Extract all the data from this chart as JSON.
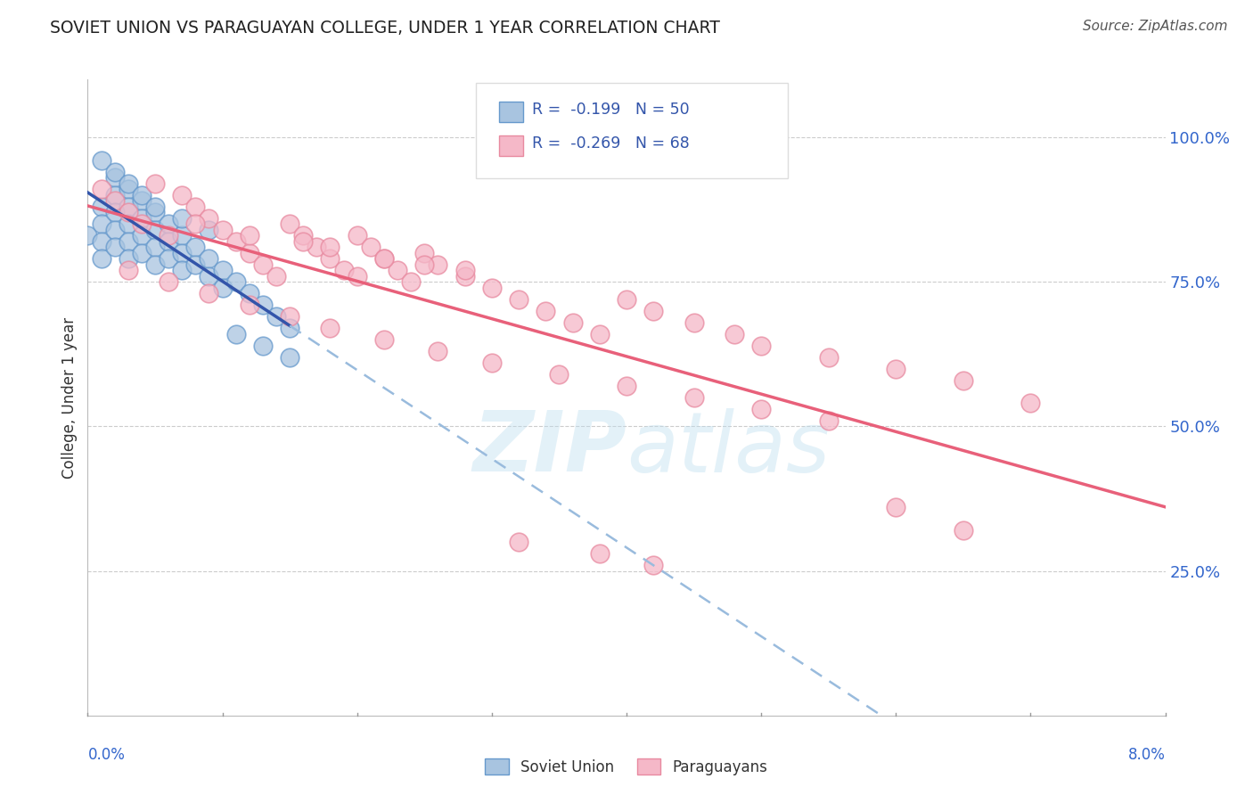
{
  "title": "SOVIET UNION VS PARAGUAYAN COLLEGE, UNDER 1 YEAR CORRELATION CHART",
  "source": "Source: ZipAtlas.com",
  "ylabel": "College, Under 1 year",
  "yticks": [
    0.25,
    0.5,
    0.75,
    1.0
  ],
  "ytick_labels": [
    "25.0%",
    "50.0%",
    "75.0%",
    "100.0%"
  ],
  "xmin": 0.0,
  "xmax": 0.08,
  "ymin": 0.0,
  "ymax": 1.1,
  "r1": -0.199,
  "n1": 50,
  "r2": -0.269,
  "n2": 68,
  "color_blue_fill": "#A8C4E0",
  "color_blue_edge": "#6699CC",
  "color_blue_line": "#3355AA",
  "color_blue_dash": "#99BBDD",
  "color_pink_fill": "#F5B8C8",
  "color_pink_edge": "#E88AA0",
  "color_pink_line": "#E8607A",
  "grid_color": "#CCCCCC",
  "soviet_x": [
    0.0,
    0.001,
    0.001,
    0.001,
    0.001,
    0.002,
    0.002,
    0.002,
    0.002,
    0.002,
    0.003,
    0.003,
    0.003,
    0.003,
    0.003,
    0.004,
    0.004,
    0.004,
    0.004,
    0.005,
    0.005,
    0.005,
    0.005,
    0.006,
    0.006,
    0.006,
    0.007,
    0.007,
    0.007,
    0.008,
    0.008,
    0.009,
    0.009,
    0.01,
    0.01,
    0.011,
    0.012,
    0.013,
    0.014,
    0.015,
    0.001,
    0.002,
    0.003,
    0.004,
    0.005,
    0.007,
    0.009,
    0.011,
    0.013,
    0.015
  ],
  "soviet_y": [
    0.83,
    0.88,
    0.85,
    0.82,
    0.79,
    0.93,
    0.9,
    0.87,
    0.84,
    0.81,
    0.91,
    0.88,
    0.85,
    0.82,
    0.79,
    0.89,
    0.86,
    0.83,
    0.8,
    0.87,
    0.84,
    0.81,
    0.78,
    0.85,
    0.82,
    0.79,
    0.83,
    0.8,
    0.77,
    0.81,
    0.78,
    0.79,
    0.76,
    0.77,
    0.74,
    0.75,
    0.73,
    0.71,
    0.69,
    0.67,
    0.96,
    0.94,
    0.92,
    0.9,
    0.88,
    0.86,
    0.84,
    0.66,
    0.64,
    0.62
  ],
  "paraguayan_x": [
    0.001,
    0.002,
    0.003,
    0.004,
    0.005,
    0.006,
    0.007,
    0.008,
    0.009,
    0.01,
    0.011,
    0.012,
    0.013,
    0.014,
    0.015,
    0.016,
    0.017,
    0.018,
    0.019,
    0.02,
    0.021,
    0.022,
    0.023,
    0.024,
    0.025,
    0.026,
    0.028,
    0.03,
    0.032,
    0.034,
    0.036,
    0.038,
    0.04,
    0.042,
    0.045,
    0.048,
    0.05,
    0.055,
    0.06,
    0.065,
    0.003,
    0.006,
    0.009,
    0.012,
    0.015,
    0.018,
    0.022,
    0.026,
    0.03,
    0.035,
    0.04,
    0.045,
    0.05,
    0.055,
    0.06,
    0.065,
    0.07,
    0.025,
    0.02,
    0.016,
    0.008,
    0.012,
    0.018,
    0.022,
    0.028,
    0.032,
    0.038,
    0.042
  ],
  "paraguayan_y": [
    0.91,
    0.89,
    0.87,
    0.85,
    0.92,
    0.83,
    0.9,
    0.88,
    0.86,
    0.84,
    0.82,
    0.8,
    0.78,
    0.76,
    0.85,
    0.83,
    0.81,
    0.79,
    0.77,
    0.83,
    0.81,
    0.79,
    0.77,
    0.75,
    0.8,
    0.78,
    0.76,
    0.74,
    0.72,
    0.7,
    0.68,
    0.66,
    0.72,
    0.7,
    0.68,
    0.66,
    0.64,
    0.62,
    0.6,
    0.58,
    0.77,
    0.75,
    0.73,
    0.71,
    0.69,
    0.67,
    0.65,
    0.63,
    0.61,
    0.59,
    0.57,
    0.55,
    0.53,
    0.51,
    0.36,
    0.32,
    0.54,
    0.78,
    0.76,
    0.82,
    0.85,
    0.83,
    0.81,
    0.79,
    0.77,
    0.3,
    0.28,
    0.26
  ]
}
